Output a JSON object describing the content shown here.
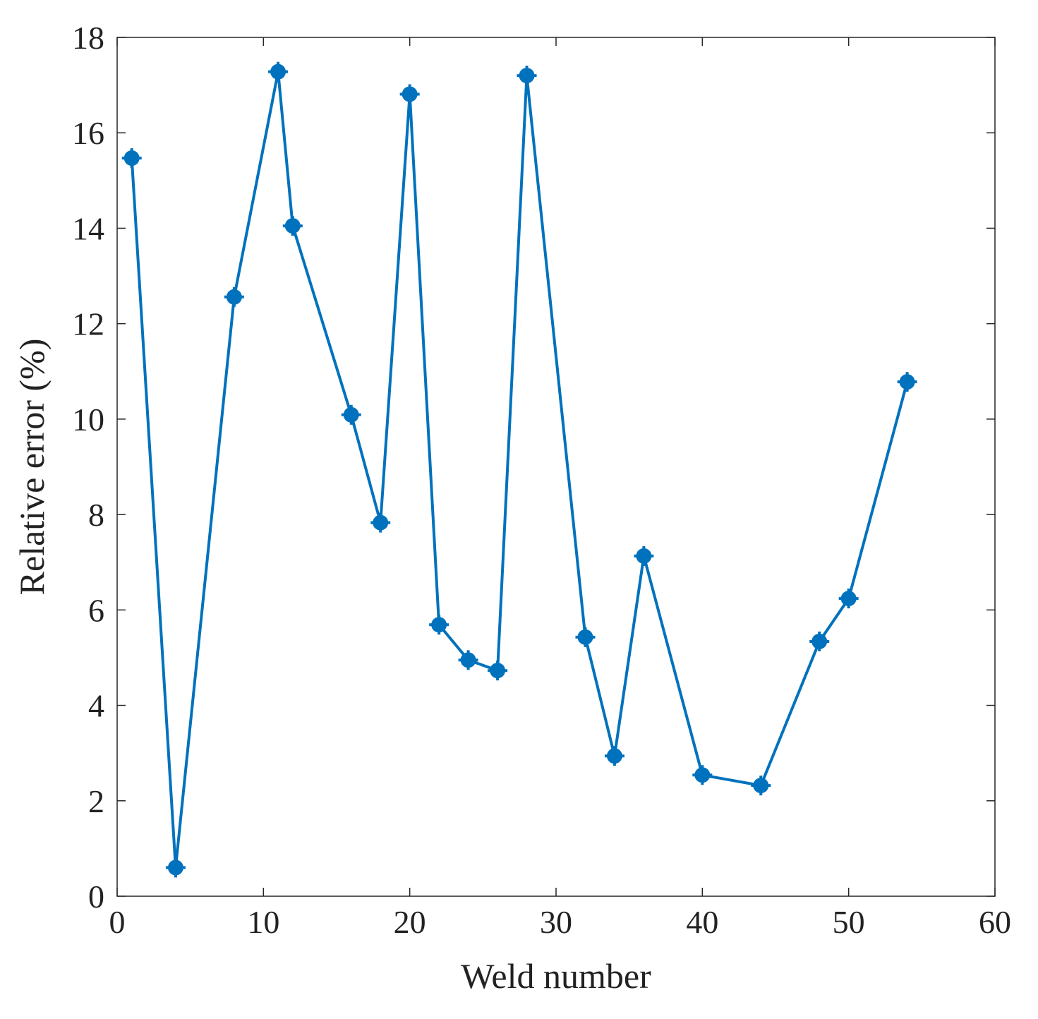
{
  "chart_data": {
    "type": "line",
    "title": "",
    "xlabel": "Weld number",
    "ylabel": "Relative error (%)",
    "xlim": [
      0,
      60
    ],
    "ylim": [
      0,
      18
    ],
    "xticks": [
      0,
      10,
      20,
      30,
      40,
      50,
      60
    ],
    "yticks": [
      0,
      2,
      4,
      6,
      8,
      10,
      12,
      14,
      16,
      18
    ],
    "grid": false,
    "line_color": "#0072BD",
    "series": [
      {
        "x": [
          1,
          4,
          8,
          11,
          12,
          16,
          18,
          20,
          22,
          24,
          26,
          28,
          32,
          34,
          36,
          40,
          44,
          48,
          50,
          54
        ],
        "values": [
          15.47,
          0.6,
          12.56,
          17.28,
          14.05,
          10.09,
          7.83,
          16.81,
          5.69,
          4.95,
          4.73,
          17.2,
          5.43,
          2.94,
          7.13,
          2.54,
          2.32,
          5.34,
          6.24,
          10.78
        ]
      }
    ]
  }
}
